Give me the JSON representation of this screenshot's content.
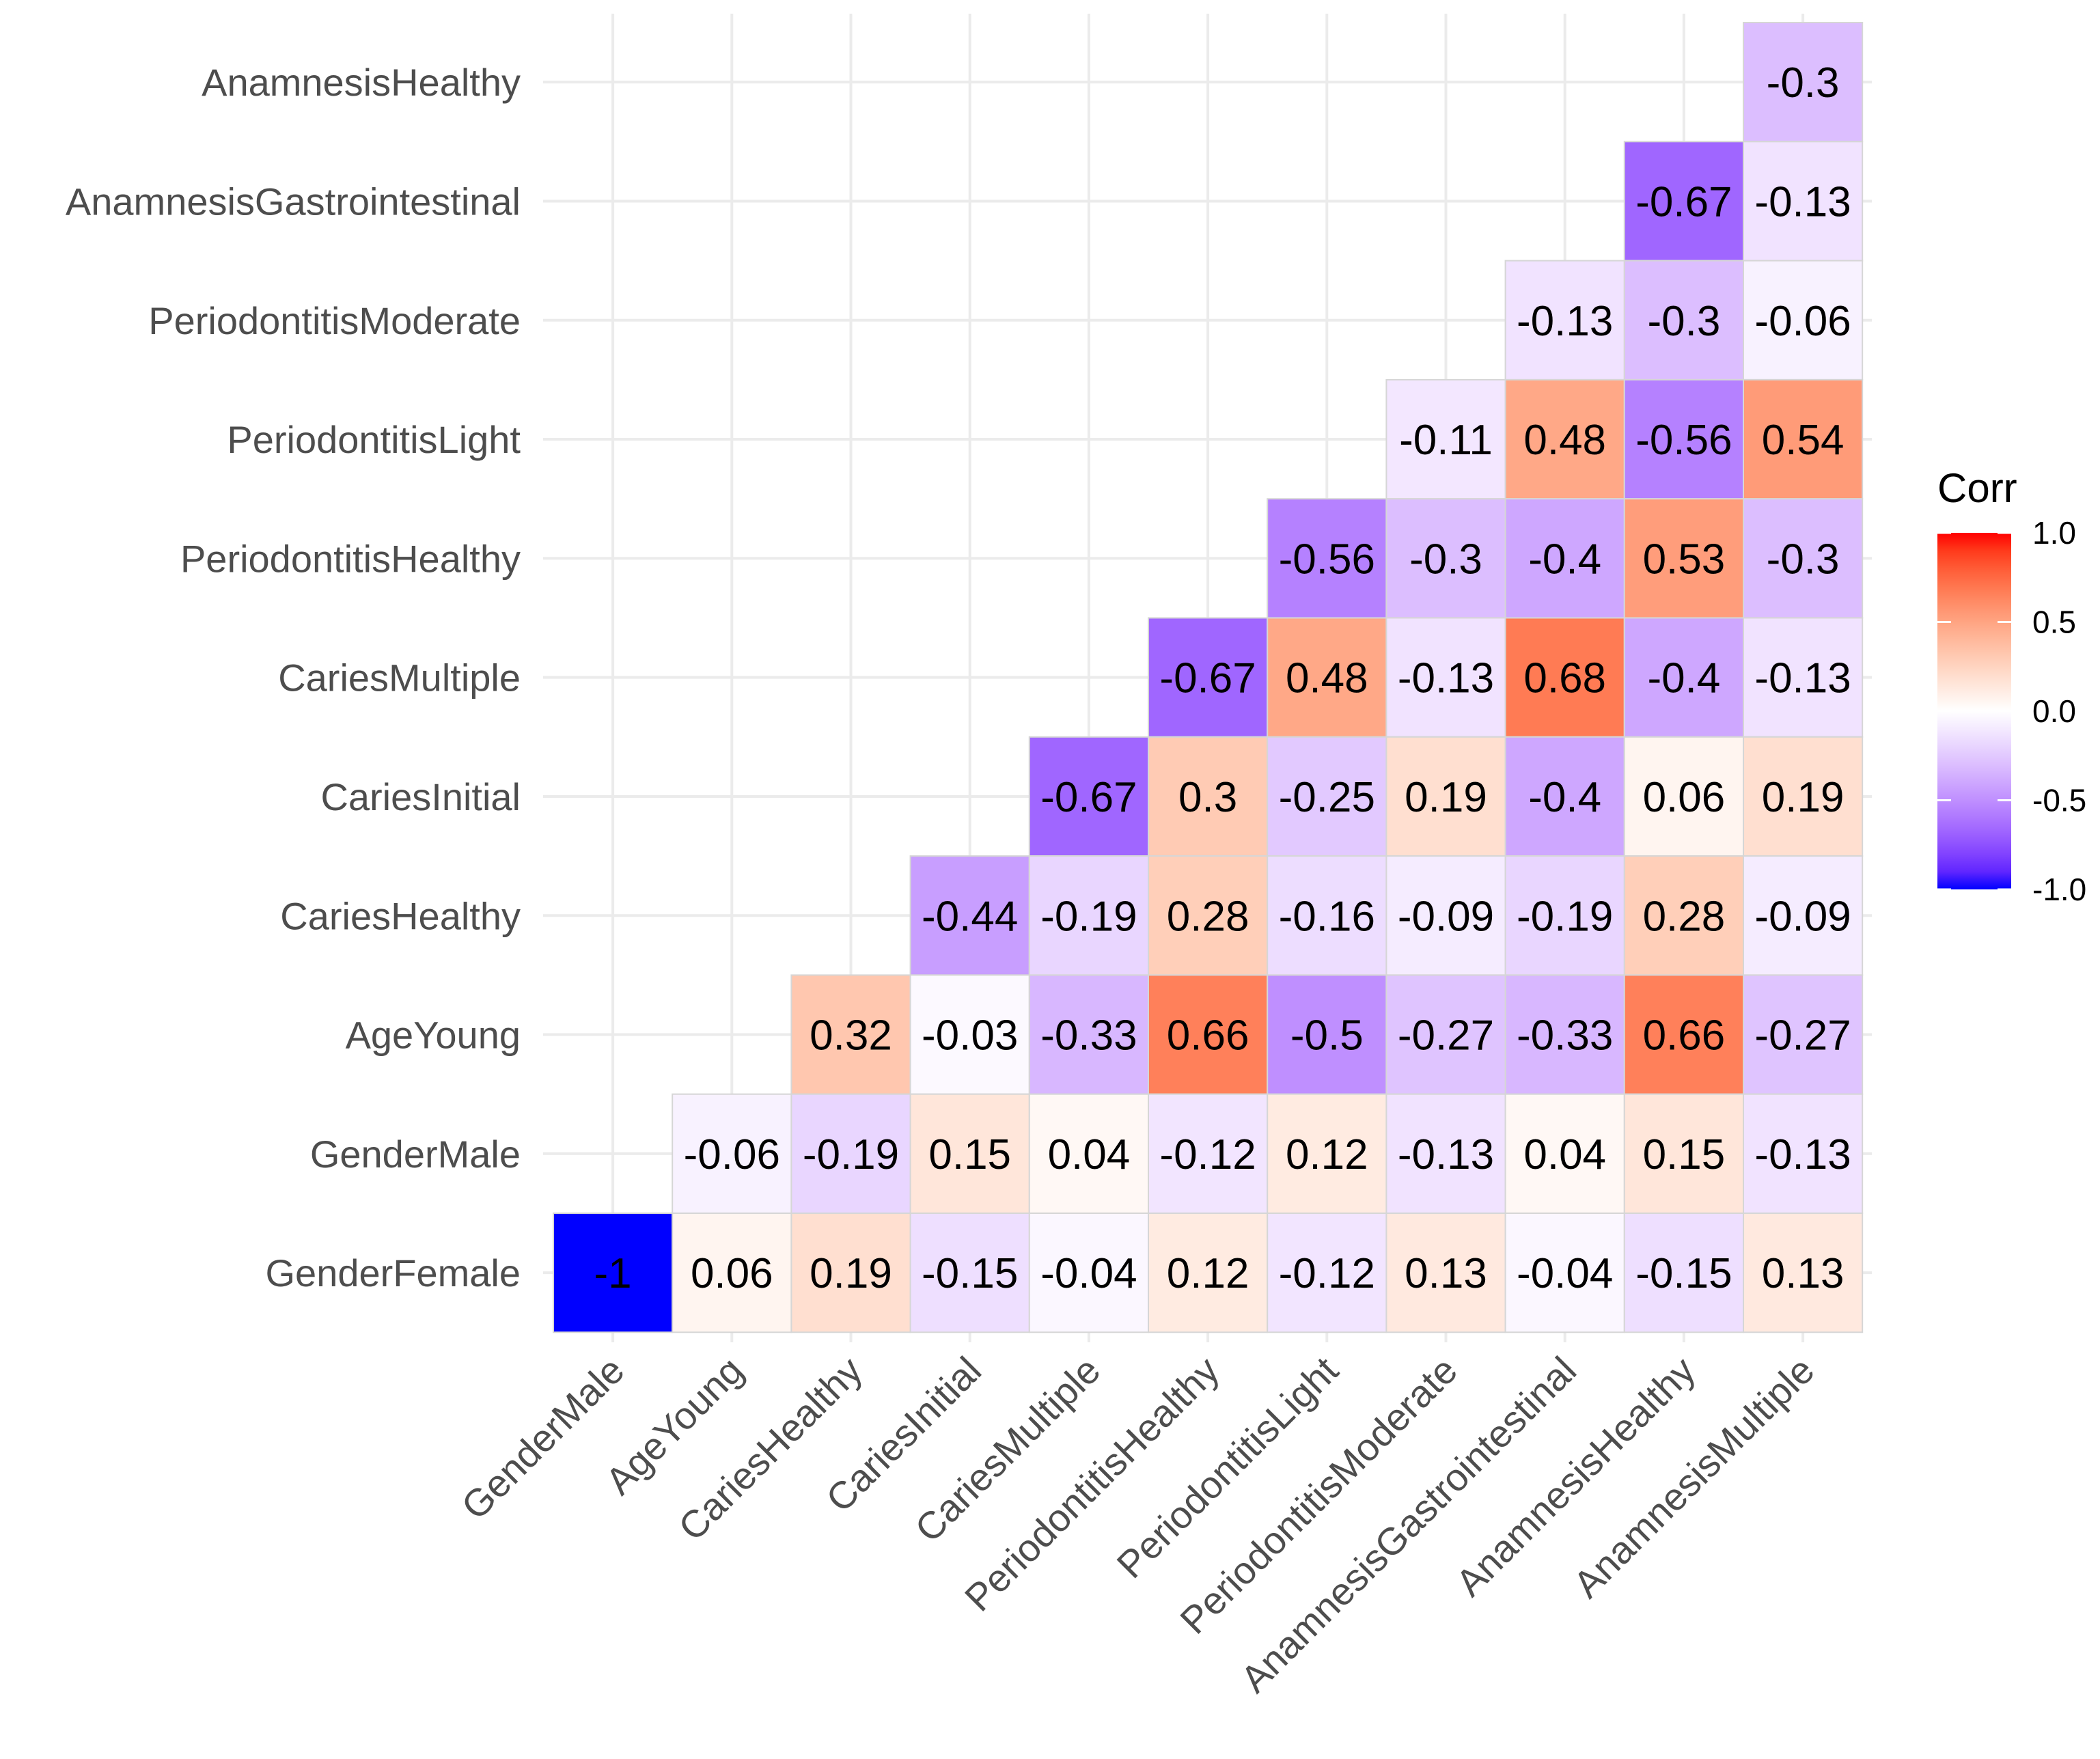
{
  "chart_data": {
    "type": "heatmap",
    "title": "",
    "xlabel": "",
    "ylabel": "",
    "x_categories": [
      "GenderMale",
      "AgeYoung",
      "CariesHealthy",
      "CariesInitial",
      "CariesMultiple",
      "PeriodontitisHealthy",
      "PeriodontitisLight",
      "PeriodontitisModerate",
      "AnamnesisGastrointestinal",
      "AnamnesisHealthy",
      "AnamnesisMultiple"
    ],
    "y_categories_top_to_bottom": [
      "AnamnesisHealthy",
      "AnamnesisGastrointestinal",
      "PeriodontitisModerate",
      "PeriodontitisLight",
      "PeriodontitisHealthy",
      "CariesMultiple",
      "CariesInitial",
      "CariesHealthy",
      "AgeYoung",
      "GenderMale",
      "GenderFemale"
    ],
    "values": [
      [
        null,
        null,
        null,
        null,
        null,
        null,
        null,
        null,
        null,
        null,
        -0.3
      ],
      [
        null,
        null,
        null,
        null,
        null,
        null,
        null,
        null,
        null,
        -0.67,
        -0.13
      ],
      [
        null,
        null,
        null,
        null,
        null,
        null,
        null,
        null,
        -0.13,
        -0.3,
        -0.06
      ],
      [
        null,
        null,
        null,
        null,
        null,
        null,
        null,
        -0.11,
        0.48,
        -0.56,
        0.54
      ],
      [
        null,
        null,
        null,
        null,
        null,
        null,
        -0.56,
        -0.3,
        -0.4,
        0.53,
        -0.3
      ],
      [
        null,
        null,
        null,
        null,
        null,
        -0.67,
        0.48,
        -0.13,
        0.68,
        -0.4,
        -0.13
      ],
      [
        null,
        null,
        null,
        null,
        -0.67,
        0.3,
        -0.25,
        0.19,
        -0.4,
        0.06,
        0.19
      ],
      [
        null,
        null,
        null,
        -0.44,
        -0.19,
        0.28,
        -0.16,
        -0.09,
        -0.19,
        0.28,
        -0.09
      ],
      [
        null,
        null,
        0.32,
        -0.03,
        -0.33,
        0.66,
        -0.5,
        -0.27,
        -0.33,
        0.66,
        -0.27
      ],
      [
        null,
        -0.06,
        -0.19,
        0.15,
        0.04,
        -0.12,
        0.12,
        -0.13,
        0.04,
        0.15,
        -0.13
      ],
      [
        -1,
        0.06,
        0.19,
        -0.15,
        -0.04,
        0.12,
        -0.12,
        0.13,
        -0.04,
        -0.15,
        0.13
      ]
    ],
    "legend": {
      "title": "Corr",
      "ticks": [
        1.0,
        0.5,
        0.0,
        -0.5,
        -1.0
      ],
      "tick_labels": [
        "1.0",
        "0.5",
        "0.0",
        "-0.5",
        "-1.0"
      ],
      "placement": "right",
      "range": [
        -1,
        1
      ],
      "low_color": "#0000FF",
      "mid_color": "#FFFFFF",
      "high_color": "#FF0000"
    },
    "grid": true
  }
}
